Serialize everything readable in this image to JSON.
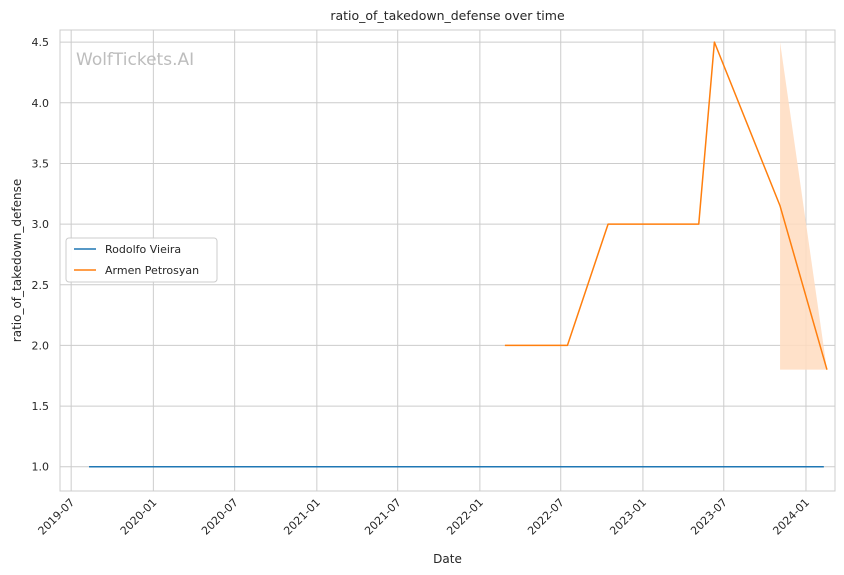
{
  "chart_data": {
    "type": "line",
    "title": "ratio_of_takedown_defense over time",
    "xlabel": "Date",
    "ylabel": "ratio_of_takedown_defense",
    "watermark": "WolfTickets.AI",
    "xlim": [
      "2019-06-06",
      "2024-03-06"
    ],
    "ylim": [
      0.8,
      4.6
    ],
    "x_ticks": [
      "2019-07",
      "2020-01",
      "2020-07",
      "2021-01",
      "2021-07",
      "2022-01",
      "2022-07",
      "2023-01",
      "2023-07",
      "2024-01"
    ],
    "y_ticks": [
      "1.0",
      "1.5",
      "2.0",
      "2.5",
      "3.0",
      "3.5",
      "4.0",
      "4.5"
    ],
    "grid": true,
    "legend_position": "center-left",
    "series": [
      {
        "name": "Rodolfo Vieira",
        "color": "#1f77b4",
        "points": [
          {
            "x": "2019-08-10",
            "y": 1.0
          },
          {
            "x": "2024-02-10",
            "y": 1.0
          }
        ]
      },
      {
        "name": "Armen Petrosyan",
        "color": "#ff7f0e",
        "points": [
          {
            "x": "2022-02-26",
            "y": 2.0
          },
          {
            "x": "2022-07-16",
            "y": 2.0
          },
          {
            "x": "2022-10-15",
            "y": 3.0
          },
          {
            "x": "2023-05-06",
            "y": 3.0
          },
          {
            "x": "2023-06-10",
            "y": 4.5
          },
          {
            "x": "2023-11-04",
            "y": 3.15
          },
          {
            "x": "2024-02-17",
            "y": 1.8
          }
        ],
        "confidence_band": [
          {
            "x": "2023-11-04",
            "lower": 1.8,
            "upper": 4.5
          },
          {
            "x": "2024-02-17",
            "lower": 1.8,
            "upper": 1.8
          }
        ],
        "band_color": "#ffdcbf"
      }
    ]
  }
}
